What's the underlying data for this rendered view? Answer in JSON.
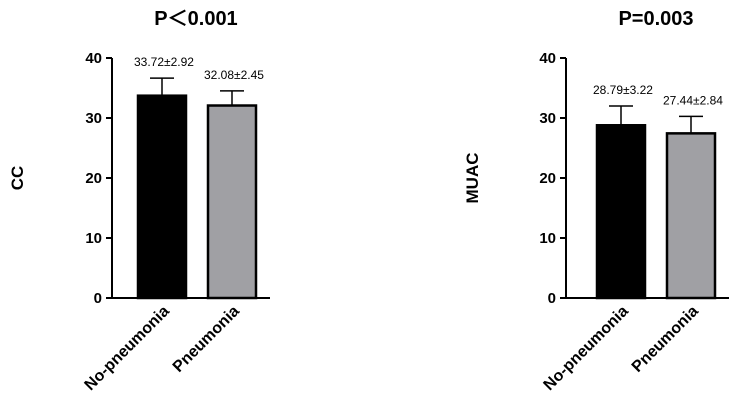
{
  "chart_data": [
    {
      "type": "bar",
      "title": "P＜0.001",
      "ylabel": "CC",
      "categories": [
        "No-pneumonia",
        "Pneumonia"
      ],
      "values": [
        33.72,
        32.08
      ],
      "errors": [
        2.92,
        2.45
      ],
      "data_labels": [
        "33.72±2.92",
        "32.08±2.45"
      ],
      "colors": [
        "#000000",
        "#a0a0a4"
      ],
      "ylim": [
        0,
        40
      ],
      "yticks": [
        0,
        10,
        20,
        30,
        40
      ],
      "grid": false
    },
    {
      "type": "bar",
      "title": "P=0.003",
      "ylabel": "MUAC",
      "categories": [
        "No-pneumonia",
        "Pneumonia"
      ],
      "values": [
        28.79,
        27.44
      ],
      "errors": [
        3.22,
        2.84
      ],
      "data_labels": [
        "28.79±3.22",
        "27.44±2.84"
      ],
      "colors": [
        "#000000",
        "#a0a0a4"
      ],
      "ylim": [
        0,
        40
      ],
      "yticks": [
        0,
        10,
        20,
        30,
        40
      ],
      "grid": false
    }
  ]
}
